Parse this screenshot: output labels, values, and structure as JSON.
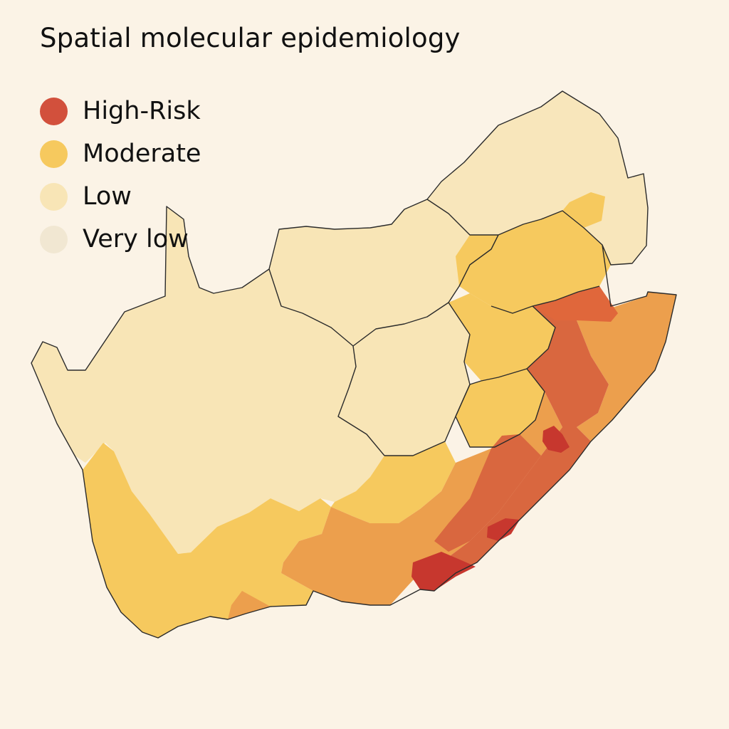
{
  "title": "Spatial molecular epidemiology",
  "legend": [
    {
      "label": "High-Risk",
      "color": "#d2503c"
    },
    {
      "label": "Moderate",
      "color": "#f6c95e"
    },
    {
      "label": "Low",
      "color": "#f8e5b6"
    },
    {
      "label": "Very low",
      "color": "#f1e7d2"
    }
  ],
  "palette": {
    "background": "#fbf3e6",
    "low": "#f8e5b6",
    "moderate": "#f6c95e",
    "moderate_high": "#ec9f4d",
    "high": "#d9673f",
    "very_high": "#c7372e",
    "neighbor": "#f8e6bb"
  }
}
